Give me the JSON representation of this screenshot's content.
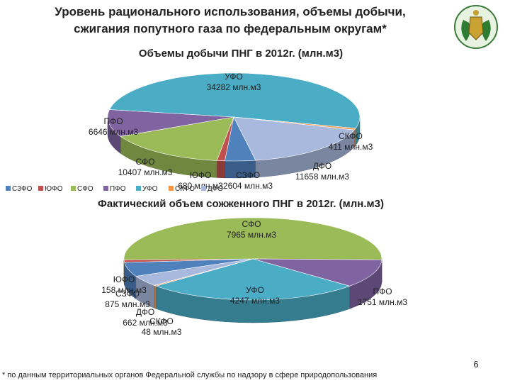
{
  "title": "Уровень рационального использования, объемы добычи, сжигания попутного газа по федеральным округам*",
  "footnote": "* по данным территориальных органов Федеральной службы по надзору в сфере природопользования",
  "page_number": "6",
  "chart_data": [
    {
      "type": "pie",
      "title": "Объемы добычи ПНГ в 2012г. (млн.м3)",
      "categories": [
        "СЗФО",
        "ЮФО",
        "СФО",
        "ПФО",
        "УФО",
        "СКФО",
        "ДФО"
      ],
      "values": [
        2604,
        680,
        10407,
        6646,
        34282,
        411,
        11658
      ],
      "value_labels": [
        "2604 млн.м3",
        "680 млн.м3",
        "10407 млн.м3",
        "6646 млн.м3",
        "34282 млн.м3",
        "411 млн.м3",
        "11658 млн.м3"
      ],
      "colors": [
        "#4f81bd",
        "#c0504d",
        "#9bbb59",
        "#8064a2",
        "#4bacc6",
        "#f79646",
        "#a9b9de"
      ],
      "legend": "bottom"
    },
    {
      "type": "pie",
      "title": "Фактический объем сожженного ПНГ в 2012г. (млн.м3)",
      "categories": [
        "СЗФО",
        "ЮФО",
        "СФО",
        "ПФО",
        "УФО",
        "СКФО",
        "ДФО"
      ],
      "values": [
        875,
        158,
        7965,
        1751,
        4247,
        48,
        662
      ],
      "value_labels": [
        "875 млн.м3",
        "158 млн.м3",
        "7965 млн.м3",
        "1751 млн.м3",
        "4247 млн.м3",
        "48 млн.м3",
        "662 млн.м3"
      ],
      "colors": [
        "#4f81bd",
        "#c0504d",
        "#9bbb59",
        "#8064a2",
        "#4bacc6",
        "#f79646",
        "#a9b9de"
      ]
    }
  ]
}
